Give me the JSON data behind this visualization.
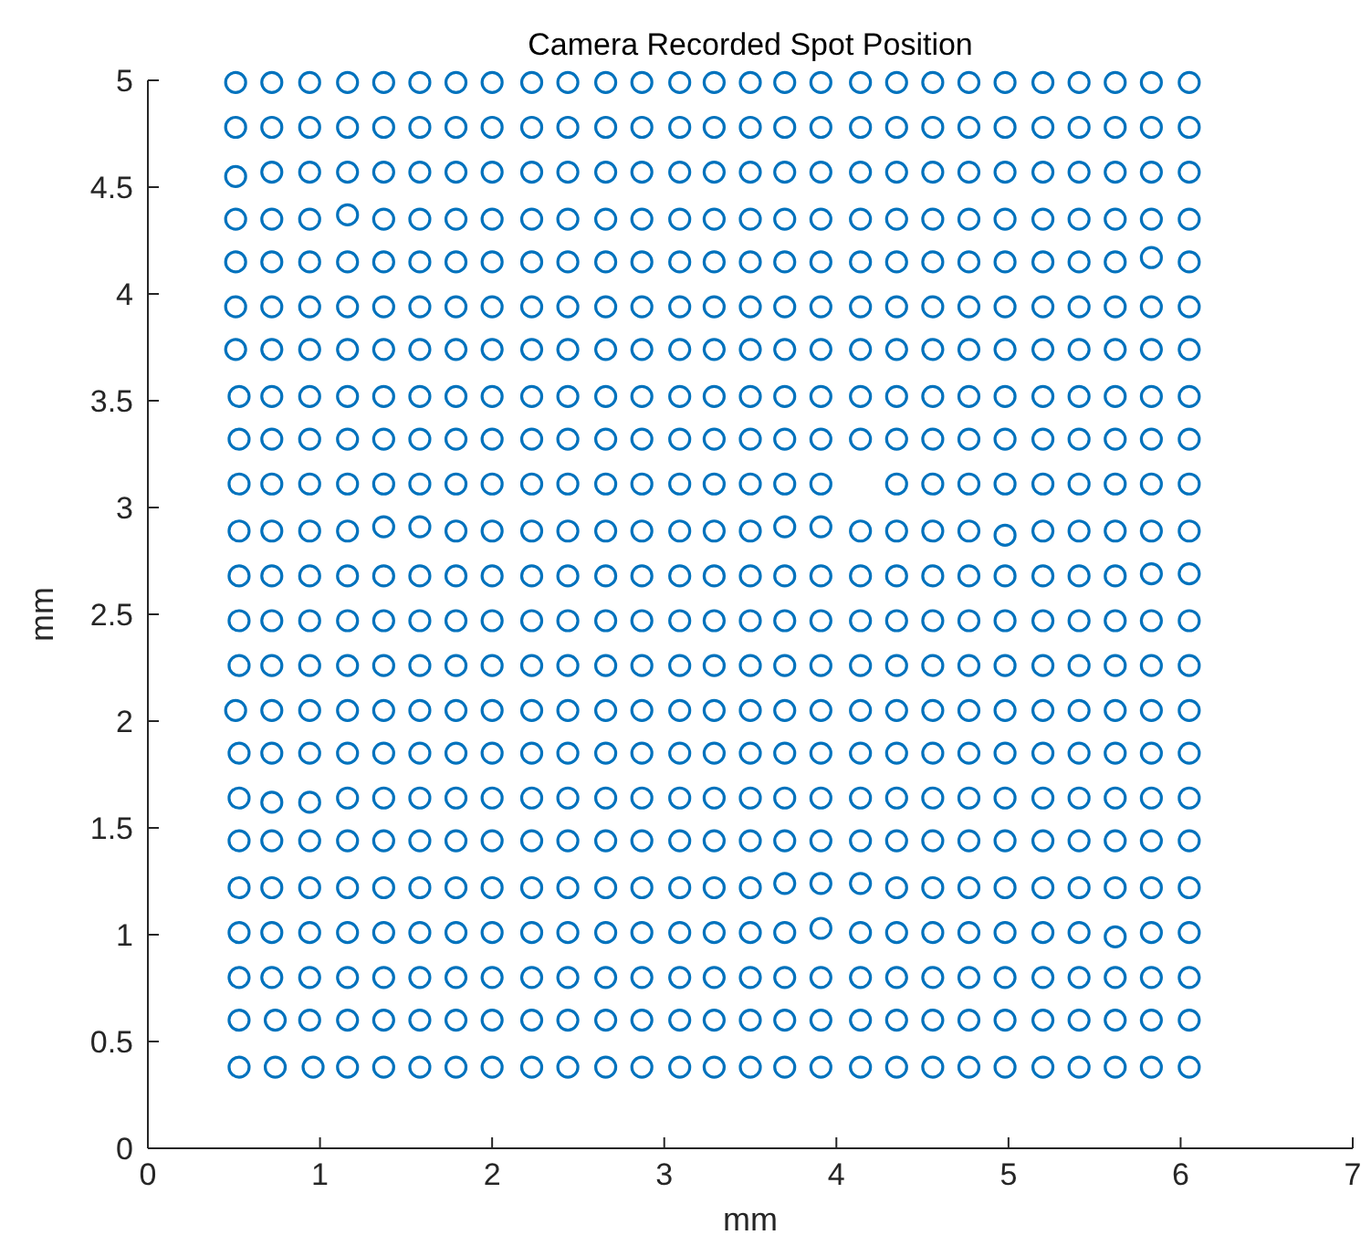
{
  "chart_data": {
    "type": "scatter",
    "title": "Camera Recorded Spot Position",
    "xlabel": "mm",
    "ylabel": "mm",
    "xlim": [
      0,
      7
    ],
    "xticks": [
      0,
      1,
      2,
      3,
      4,
      5,
      6,
      7
    ],
    "ylim": [
      0,
      5
    ],
    "yticks": [
      0,
      0.5,
      1,
      1.5,
      2,
      2.5,
      3,
      3.5,
      4,
      4.5,
      5
    ],
    "grid": false,
    "marker": "circle",
    "series": [
      {
        "color": "#0072bd",
        "x": [
          0.51,
          0.72,
          0.94,
          1.16,
          1.37,
          1.58,
          1.79,
          2.0,
          2.23,
          2.44,
          2.66,
          2.87,
          3.09,
          3.29,
          3.5,
          3.7,
          3.91,
          4.14,
          4.35,
          4.56,
          4.77,
          4.98,
          5.2,
          5.41,
          5.62,
          5.83,
          6.05
        ],
        "values": [
          4.99,
          4.99,
          4.99,
          4.99,
          4.99,
          4.99,
          4.99,
          4.99,
          4.99,
          4.99,
          4.99,
          4.99,
          4.99,
          4.99,
          4.99,
          4.99,
          4.99,
          4.99,
          4.99,
          4.99,
          4.99,
          4.99,
          4.99,
          4.99,
          4.99,
          4.99,
          4.99
        ]
      },
      {
        "color": "#0072bd",
        "x": [
          0.51,
          0.72,
          0.94,
          1.16,
          1.37,
          1.58,
          1.79,
          2.0,
          2.23,
          2.44,
          2.66,
          2.87,
          3.09,
          3.29,
          3.5,
          3.7,
          3.91,
          4.14,
          4.35,
          4.56,
          4.77,
          4.98,
          5.2,
          5.41,
          5.62,
          5.83,
          6.05
        ],
        "values": [
          4.78,
          4.78,
          4.78,
          4.78,
          4.78,
          4.78,
          4.78,
          4.78,
          4.78,
          4.78,
          4.78,
          4.78,
          4.78,
          4.78,
          4.78,
          4.78,
          4.78,
          4.78,
          4.78,
          4.78,
          4.78,
          4.78,
          4.78,
          4.78,
          4.78,
          4.78,
          4.78
        ]
      },
      {
        "color": "#0072bd",
        "x": [
          0.51,
          0.72,
          0.94,
          1.16,
          1.37,
          1.58,
          1.79,
          2.0,
          2.23,
          2.44,
          2.66,
          2.87,
          3.09,
          3.29,
          3.5,
          3.7,
          3.91,
          4.14,
          4.35,
          4.56,
          4.77,
          4.98,
          5.2,
          5.41,
          5.62,
          5.83,
          6.05
        ],
        "values": [
          4.55,
          4.57,
          4.57,
          4.57,
          4.57,
          4.57,
          4.57,
          4.57,
          4.57,
          4.57,
          4.57,
          4.57,
          4.57,
          4.57,
          4.57,
          4.57,
          4.57,
          4.57,
          4.57,
          4.57,
          4.57,
          4.57,
          4.57,
          4.57,
          4.57,
          4.57,
          4.57
        ]
      },
      {
        "color": "#0072bd",
        "x": [
          0.51,
          0.72,
          0.94,
          1.16,
          1.37,
          1.58,
          1.79,
          2.0,
          2.23,
          2.44,
          2.66,
          2.87,
          3.09,
          3.29,
          3.5,
          3.7,
          3.91,
          4.14,
          4.35,
          4.56,
          4.77,
          4.98,
          5.2,
          5.41,
          5.62,
          5.83,
          6.05
        ],
        "values": [
          4.35,
          4.35,
          4.35,
          4.37,
          4.35,
          4.35,
          4.35,
          4.35,
          4.35,
          4.35,
          4.35,
          4.35,
          4.35,
          4.35,
          4.35,
          4.35,
          4.35,
          4.35,
          4.35,
          4.35,
          4.35,
          4.35,
          4.35,
          4.35,
          4.35,
          4.35,
          4.35
        ]
      },
      {
        "color": "#0072bd",
        "x": [
          0.51,
          0.72,
          0.94,
          1.16,
          1.37,
          1.58,
          1.79,
          2.0,
          2.23,
          2.44,
          2.66,
          2.87,
          3.09,
          3.29,
          3.5,
          3.7,
          3.91,
          4.14,
          4.35,
          4.56,
          4.77,
          4.98,
          5.2,
          5.41,
          5.62,
          5.83,
          6.05
        ],
        "values": [
          4.15,
          4.15,
          4.15,
          4.15,
          4.15,
          4.15,
          4.15,
          4.15,
          4.15,
          4.15,
          4.15,
          4.15,
          4.15,
          4.15,
          4.15,
          4.15,
          4.15,
          4.15,
          4.15,
          4.15,
          4.15,
          4.15,
          4.15,
          4.15,
          4.15,
          4.17,
          4.15
        ]
      },
      {
        "color": "#0072bd",
        "x": [
          0.51,
          0.72,
          0.94,
          1.16,
          1.37,
          1.58,
          1.79,
          2.0,
          2.23,
          2.44,
          2.66,
          2.87,
          3.09,
          3.29,
          3.5,
          3.7,
          3.91,
          4.14,
          4.35,
          4.56,
          4.77,
          4.98,
          5.2,
          5.41,
          5.62,
          5.83,
          6.05
        ],
        "values": [
          3.94,
          3.94,
          3.94,
          3.94,
          3.94,
          3.94,
          3.94,
          3.94,
          3.94,
          3.94,
          3.94,
          3.94,
          3.94,
          3.94,
          3.94,
          3.94,
          3.94,
          3.94,
          3.94,
          3.94,
          3.94,
          3.94,
          3.94,
          3.94,
          3.94,
          3.94,
          3.94
        ]
      },
      {
        "color": "#0072bd",
        "x": [
          0.51,
          0.72,
          0.94,
          1.16,
          1.37,
          1.58,
          1.79,
          2.0,
          2.23,
          2.44,
          2.66,
          2.87,
          3.09,
          3.29,
          3.5,
          3.7,
          3.91,
          4.14,
          4.35,
          4.56,
          4.77,
          4.98,
          5.2,
          5.41,
          5.62,
          5.83,
          6.05
        ],
        "values": [
          3.74,
          3.74,
          3.74,
          3.74,
          3.74,
          3.74,
          3.74,
          3.74,
          3.74,
          3.74,
          3.74,
          3.74,
          3.74,
          3.74,
          3.74,
          3.74,
          3.74,
          3.74,
          3.74,
          3.74,
          3.74,
          3.74,
          3.74,
          3.74,
          3.74,
          3.74,
          3.74
        ]
      },
      {
        "color": "#0072bd",
        "x": [
          0.53,
          0.72,
          0.94,
          1.16,
          1.37,
          1.58,
          1.79,
          2.0,
          2.23,
          2.44,
          2.66,
          2.87,
          3.09,
          3.29,
          3.5,
          3.7,
          3.91,
          4.14,
          4.35,
          4.56,
          4.77,
          4.98,
          5.2,
          5.41,
          5.62,
          5.83,
          6.05
        ],
        "values": [
          3.52,
          3.52,
          3.52,
          3.52,
          3.52,
          3.52,
          3.52,
          3.52,
          3.52,
          3.52,
          3.52,
          3.52,
          3.52,
          3.52,
          3.52,
          3.52,
          3.52,
          3.52,
          3.52,
          3.52,
          3.52,
          3.52,
          3.52,
          3.52,
          3.52,
          3.52,
          3.52
        ]
      },
      {
        "color": "#0072bd",
        "x": [
          0.53,
          0.72,
          0.94,
          1.16,
          1.37,
          1.58,
          1.79,
          2.0,
          2.23,
          2.44,
          2.66,
          2.87,
          3.09,
          3.29,
          3.5,
          3.7,
          3.91,
          4.14,
          4.35,
          4.56,
          4.77,
          4.98,
          5.2,
          5.41,
          5.62,
          5.83,
          6.05
        ],
        "values": [
          3.32,
          3.32,
          3.32,
          3.32,
          3.32,
          3.32,
          3.32,
          3.32,
          3.32,
          3.32,
          3.32,
          3.32,
          3.32,
          3.32,
          3.32,
          3.32,
          3.32,
          3.32,
          3.32,
          3.32,
          3.32,
          3.32,
          3.32,
          3.32,
          3.32,
          3.32,
          3.32
        ]
      },
      {
        "color": "#0072bd",
        "x": [
          0.53,
          0.72,
          0.94,
          1.16,
          1.37,
          1.58,
          1.79,
          2.0,
          2.23,
          2.44,
          2.66,
          2.87,
          3.09,
          3.29,
          3.5,
          3.7,
          3.91,
          4.35,
          4.56,
          4.77,
          4.98,
          5.2,
          5.41,
          5.62,
          5.83,
          6.05
        ],
        "values": [
          3.11,
          3.11,
          3.11,
          3.11,
          3.11,
          3.11,
          3.11,
          3.11,
          3.11,
          3.11,
          3.11,
          3.11,
          3.11,
          3.11,
          3.11,
          3.11,
          3.11,
          3.11,
          3.11,
          3.11,
          3.11,
          3.11,
          3.11,
          3.11,
          3.11,
          3.11
        ]
      },
      {
        "color": "#0072bd",
        "x": [
          0.53,
          0.72,
          0.94,
          1.16,
          1.37,
          1.58,
          1.79,
          2.0,
          2.23,
          2.44,
          2.66,
          2.87,
          3.09,
          3.29,
          3.5,
          3.7,
          3.91,
          4.14,
          4.35,
          4.56,
          4.77,
          4.98,
          5.2,
          5.41,
          5.62,
          5.83,
          6.05
        ],
        "values": [
          2.89,
          2.89,
          2.89,
          2.89,
          2.91,
          2.91,
          2.89,
          2.89,
          2.89,
          2.89,
          2.89,
          2.89,
          2.89,
          2.89,
          2.89,
          2.91,
          2.91,
          2.89,
          2.89,
          2.89,
          2.89,
          2.87,
          2.89,
          2.89,
          2.89,
          2.89,
          2.89
        ]
      },
      {
        "color": "#0072bd",
        "x": [
          0.53,
          0.72,
          0.94,
          1.16,
          1.37,
          1.58,
          1.79,
          2.0,
          2.23,
          2.44,
          2.66,
          2.87,
          3.09,
          3.29,
          3.5,
          3.7,
          3.91,
          4.14,
          4.35,
          4.56,
          4.77,
          4.98,
          5.2,
          5.41,
          5.62,
          5.83,
          6.05
        ],
        "values": [
          2.68,
          2.68,
          2.68,
          2.68,
          2.68,
          2.68,
          2.68,
          2.68,
          2.68,
          2.68,
          2.68,
          2.68,
          2.68,
          2.68,
          2.68,
          2.68,
          2.68,
          2.68,
          2.68,
          2.68,
          2.68,
          2.68,
          2.68,
          2.68,
          2.68,
          2.69,
          2.69
        ]
      },
      {
        "color": "#0072bd",
        "x": [
          0.53,
          0.72,
          0.94,
          1.16,
          1.37,
          1.58,
          1.79,
          2.0,
          2.23,
          2.44,
          2.66,
          2.87,
          3.09,
          3.29,
          3.5,
          3.7,
          3.91,
          4.14,
          4.35,
          4.56,
          4.77,
          4.98,
          5.2,
          5.41,
          5.62,
          5.83,
          6.05
        ],
        "values": [
          2.47,
          2.47,
          2.47,
          2.47,
          2.47,
          2.47,
          2.47,
          2.47,
          2.47,
          2.47,
          2.47,
          2.47,
          2.47,
          2.47,
          2.47,
          2.47,
          2.47,
          2.47,
          2.47,
          2.47,
          2.47,
          2.47,
          2.47,
          2.47,
          2.47,
          2.47,
          2.47
        ]
      },
      {
        "color": "#0072bd",
        "x": [
          0.53,
          0.72,
          0.94,
          1.16,
          1.37,
          1.58,
          1.79,
          2.0,
          2.23,
          2.44,
          2.66,
          2.87,
          3.09,
          3.29,
          3.5,
          3.7,
          3.91,
          4.14,
          4.35,
          4.56,
          4.77,
          4.98,
          5.2,
          5.41,
          5.62,
          5.83,
          6.05
        ],
        "values": [
          2.26,
          2.26,
          2.26,
          2.26,
          2.26,
          2.26,
          2.26,
          2.26,
          2.26,
          2.26,
          2.26,
          2.26,
          2.26,
          2.26,
          2.26,
          2.26,
          2.26,
          2.26,
          2.26,
          2.26,
          2.26,
          2.26,
          2.26,
          2.26,
          2.26,
          2.26,
          2.26
        ]
      },
      {
        "color": "#0072bd",
        "x": [
          0.51,
          0.72,
          0.94,
          1.16,
          1.37,
          1.58,
          1.79,
          2.0,
          2.23,
          2.44,
          2.66,
          2.87,
          3.09,
          3.29,
          3.5,
          3.7,
          3.91,
          4.14,
          4.35,
          4.56,
          4.77,
          4.98,
          5.2,
          5.41,
          5.62,
          5.83,
          6.05
        ],
        "values": [
          2.05,
          2.05,
          2.05,
          2.05,
          2.05,
          2.05,
          2.05,
          2.05,
          2.05,
          2.05,
          2.05,
          2.05,
          2.05,
          2.05,
          2.05,
          2.05,
          2.05,
          2.05,
          2.05,
          2.05,
          2.05,
          2.05,
          2.05,
          2.05,
          2.05,
          2.05,
          2.05
        ]
      },
      {
        "color": "#0072bd",
        "x": [
          0.53,
          0.72,
          0.94,
          1.16,
          1.37,
          1.58,
          1.79,
          2.0,
          2.23,
          2.44,
          2.66,
          2.87,
          3.09,
          3.29,
          3.5,
          3.7,
          3.91,
          4.14,
          4.35,
          4.56,
          4.77,
          4.98,
          5.2,
          5.41,
          5.62,
          5.83,
          6.05
        ],
        "values": [
          1.85,
          1.85,
          1.85,
          1.85,
          1.85,
          1.85,
          1.85,
          1.85,
          1.85,
          1.85,
          1.85,
          1.85,
          1.85,
          1.85,
          1.85,
          1.85,
          1.85,
          1.85,
          1.85,
          1.85,
          1.85,
          1.85,
          1.85,
          1.85,
          1.85,
          1.85,
          1.85
        ]
      },
      {
        "color": "#0072bd",
        "x": [
          0.53,
          0.72,
          0.94,
          1.16,
          1.37,
          1.58,
          1.79,
          2.0,
          2.23,
          2.44,
          2.66,
          2.87,
          3.09,
          3.29,
          3.5,
          3.7,
          3.91,
          4.14,
          4.35,
          4.56,
          4.77,
          4.98,
          5.2,
          5.41,
          5.62,
          5.83,
          6.05
        ],
        "values": [
          1.64,
          1.62,
          1.62,
          1.64,
          1.64,
          1.64,
          1.64,
          1.64,
          1.64,
          1.64,
          1.64,
          1.64,
          1.64,
          1.64,
          1.64,
          1.64,
          1.64,
          1.64,
          1.64,
          1.64,
          1.64,
          1.64,
          1.64,
          1.64,
          1.64,
          1.64,
          1.64
        ]
      },
      {
        "color": "#0072bd",
        "x": [
          0.53,
          0.72,
          0.94,
          1.16,
          1.37,
          1.58,
          1.79,
          2.0,
          2.23,
          2.44,
          2.66,
          2.87,
          3.09,
          3.29,
          3.5,
          3.7,
          3.91,
          4.14,
          4.35,
          4.56,
          4.77,
          4.98,
          5.2,
          5.41,
          5.62,
          5.83,
          6.05
        ],
        "values": [
          1.44,
          1.44,
          1.44,
          1.44,
          1.44,
          1.44,
          1.44,
          1.44,
          1.44,
          1.44,
          1.44,
          1.44,
          1.44,
          1.44,
          1.44,
          1.44,
          1.44,
          1.44,
          1.44,
          1.44,
          1.44,
          1.44,
          1.44,
          1.44,
          1.44,
          1.44,
          1.44
        ]
      },
      {
        "color": "#0072bd",
        "x": [
          0.53,
          0.72,
          0.94,
          1.16,
          1.37,
          1.58,
          1.79,
          2.0,
          2.23,
          2.44,
          2.66,
          2.87,
          3.09,
          3.29,
          3.5,
          3.7,
          3.91,
          4.14,
          4.35,
          4.56,
          4.77,
          4.98,
          5.2,
          5.41,
          5.62,
          5.83,
          6.05
        ],
        "values": [
          1.22,
          1.22,
          1.22,
          1.22,
          1.22,
          1.22,
          1.22,
          1.22,
          1.22,
          1.22,
          1.22,
          1.22,
          1.22,
          1.22,
          1.22,
          1.24,
          1.24,
          1.24,
          1.22,
          1.22,
          1.22,
          1.22,
          1.22,
          1.22,
          1.22,
          1.22,
          1.22
        ]
      },
      {
        "color": "#0072bd",
        "x": [
          0.53,
          0.72,
          0.94,
          1.16,
          1.37,
          1.58,
          1.79,
          2.0,
          2.23,
          2.44,
          2.66,
          2.87,
          3.09,
          3.29,
          3.5,
          3.7,
          3.91,
          4.14,
          4.35,
          4.56,
          4.77,
          4.98,
          5.2,
          5.41,
          5.62,
          5.83,
          6.05
        ],
        "values": [
          1.01,
          1.01,
          1.01,
          1.01,
          1.01,
          1.01,
          1.01,
          1.01,
          1.01,
          1.01,
          1.01,
          1.01,
          1.01,
          1.01,
          1.01,
          1.01,
          1.03,
          1.01,
          1.01,
          1.01,
          1.01,
          1.01,
          1.01,
          1.01,
          0.99,
          1.01,
          1.01
        ]
      },
      {
        "color": "#0072bd",
        "x": [
          0.53,
          0.72,
          0.94,
          1.16,
          1.37,
          1.58,
          1.79,
          2.0,
          2.23,
          2.44,
          2.66,
          2.87,
          3.09,
          3.29,
          3.5,
          3.7,
          3.91,
          4.14,
          4.35,
          4.56,
          4.77,
          4.98,
          5.2,
          5.41,
          5.62,
          5.83,
          6.05
        ],
        "values": [
          0.8,
          0.8,
          0.8,
          0.8,
          0.8,
          0.8,
          0.8,
          0.8,
          0.8,
          0.8,
          0.8,
          0.8,
          0.8,
          0.8,
          0.8,
          0.8,
          0.8,
          0.8,
          0.8,
          0.8,
          0.8,
          0.8,
          0.8,
          0.8,
          0.8,
          0.8,
          0.8
        ]
      },
      {
        "color": "#0072bd",
        "x": [
          0.53,
          0.74,
          0.94,
          1.16,
          1.37,
          1.58,
          1.79,
          2.0,
          2.23,
          2.44,
          2.66,
          2.87,
          3.09,
          3.29,
          3.5,
          3.7,
          3.91,
          4.14,
          4.35,
          4.56,
          4.77,
          4.98,
          5.2,
          5.41,
          5.62,
          5.83,
          6.05
        ],
        "values": [
          0.6,
          0.6,
          0.6,
          0.6,
          0.6,
          0.6,
          0.6,
          0.6,
          0.6,
          0.6,
          0.6,
          0.6,
          0.6,
          0.6,
          0.6,
          0.6,
          0.6,
          0.6,
          0.6,
          0.6,
          0.6,
          0.6,
          0.6,
          0.6,
          0.6,
          0.6,
          0.6
        ]
      },
      {
        "color": "#0072bd",
        "x": [
          0.53,
          0.74,
          0.96,
          1.16,
          1.37,
          1.58,
          1.79,
          2.0,
          2.23,
          2.44,
          2.66,
          2.87,
          3.09,
          3.29,
          3.5,
          3.7,
          3.91,
          4.14,
          4.35,
          4.56,
          4.77,
          4.98,
          5.2,
          5.41,
          5.62,
          5.83,
          6.05
        ],
        "values": [
          0.38,
          0.38,
          0.38,
          0.38,
          0.38,
          0.38,
          0.38,
          0.38,
          0.38,
          0.38,
          0.38,
          0.38,
          0.38,
          0.38,
          0.38,
          0.38,
          0.38,
          0.38,
          0.38,
          0.38,
          0.38,
          0.38,
          0.38,
          0.38,
          0.38,
          0.38,
          0.38
        ]
      }
    ]
  }
}
